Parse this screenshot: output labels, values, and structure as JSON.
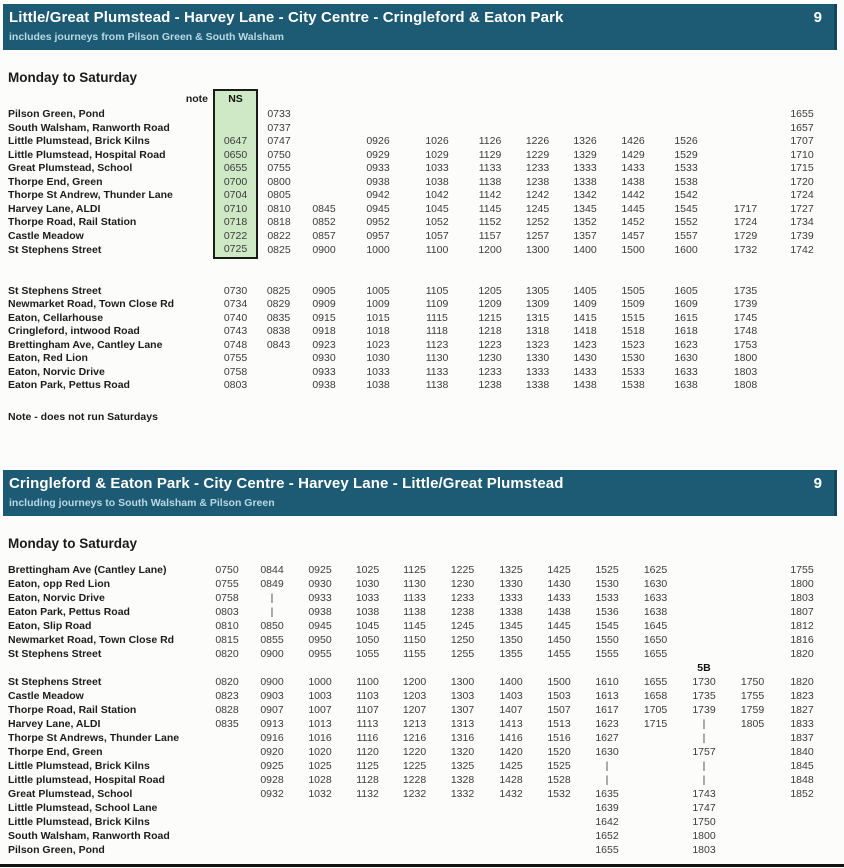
{
  "colors": {
    "banner_bg": "#1d5a74",
    "banner_subtitle": "#b8d8e4",
    "ns_fill": "#cfe9c6",
    "rule": "#121212"
  },
  "outbound": {
    "title": "Little/Great Plumstead - Harvey Lane - City Centre - Cringleford & Eaton Park",
    "route": "9",
    "subtitle": "includes journeys from Pilson Green & South Walsham",
    "day_label": "Monday to Saturday",
    "note_col_label": "note",
    "ns_label": "NS",
    "footnote": "Note - does not run Saturdays",
    "columns": 12,
    "sections": [
      [
        {
          "stop": "Pilson Green, Pond",
          "times": [
            "",
            "0733",
            "",
            "",
            "",
            "",
            "",
            "",
            "",
            "",
            "",
            "1655"
          ]
        },
        {
          "stop": "South Walsham, Ranworth Road",
          "times": [
            "",
            "0737",
            "",
            "",
            "",
            "",
            "",
            "",
            "",
            "",
            "",
            "1657"
          ]
        },
        {
          "stop": "Little Plumstead, Brick Kilns",
          "times": [
            "0647",
            "0747",
            "",
            "0926",
            "1026",
            "1126",
            "1226",
            "1326",
            "1426",
            "1526",
            "",
            "1707"
          ]
        },
        {
          "stop": "Little Plumstead, Hospital Road",
          "times": [
            "0650",
            "0750",
            "",
            "0929",
            "1029",
            "1129",
            "1229",
            "1329",
            "1429",
            "1529",
            "",
            "1710"
          ]
        },
        {
          "stop": "Great Plumstead, School",
          "times": [
            "0655",
            "0755",
            "",
            "0933",
            "1033",
            "1133",
            "1233",
            "1333",
            "1433",
            "1533",
            "",
            "1715"
          ]
        },
        {
          "stop": "Thorpe End, Green",
          "times": [
            "0700",
            "0800",
            "",
            "0938",
            "1038",
            "1138",
            "1238",
            "1338",
            "1438",
            "1538",
            "",
            "1720"
          ]
        },
        {
          "stop": "Thorpe St Andrew, Thunder Lane",
          "times": [
            "0704",
            "0805",
            "",
            "0942",
            "1042",
            "1142",
            "1242",
            "1342",
            "1442",
            "1542",
            "",
            "1724"
          ]
        },
        {
          "stop": "Harvey Lane, ALDI",
          "times": [
            "0710",
            "0810",
            "0845",
            "0945",
            "1045",
            "1145",
            "1245",
            "1345",
            "1445",
            "1545",
            "1717",
            "1727"
          ]
        },
        {
          "stop": "Thorpe Road, Rail Station",
          "times": [
            "0718",
            "0818",
            "0852",
            "0952",
            "1052",
            "1152",
            "1252",
            "1352",
            "1452",
            "1552",
            "1724",
            "1734"
          ]
        },
        {
          "stop": "Castle Meadow",
          "times": [
            "0722",
            "0822",
            "0857",
            "0957",
            "1057",
            "1157",
            "1257",
            "1357",
            "1457",
            "1557",
            "1729",
            "1739"
          ]
        },
        {
          "stop": "St Stephens Street",
          "times": [
            "0725",
            "0825",
            "0900",
            "1000",
            "1100",
            "1200",
            "1300",
            "1400",
            "1500",
            "1600",
            "1732",
            "1742"
          ]
        }
      ],
      [
        {
          "stop": "St Stephens Street",
          "times": [
            "0730",
            "0825",
            "0905",
            "1005",
            "1105",
            "1205",
            "1305",
            "1405",
            "1505",
            "1605",
            "1735",
            ""
          ]
        },
        {
          "stop": "Newmarket Road, Town Close Rd",
          "times": [
            "0734",
            "0829",
            "0909",
            "1009",
            "1109",
            "1209",
            "1309",
            "1409",
            "1509",
            "1609",
            "1739",
            ""
          ]
        },
        {
          "stop": "Eaton, Cellarhouse",
          "times": [
            "0740",
            "0835",
            "0915",
            "1015",
            "1115",
            "1215",
            "1315",
            "1415",
            "1515",
            "1615",
            "1745",
            ""
          ]
        },
        {
          "stop": "Cringleford, intwood Road",
          "times": [
            "0743",
            "0838",
            "0918",
            "1018",
            "1118",
            "1218",
            "1318",
            "1418",
            "1518",
            "1618",
            "1748",
            ""
          ]
        },
        {
          "stop": "Brettingham Ave, Cantley Lane",
          "times": [
            "0748",
            "0843",
            "0923",
            "1023",
            "1123",
            "1223",
            "1323",
            "1423",
            "1523",
            "1623",
            "1753",
            ""
          ]
        },
        {
          "stop": "Eaton, Red Lion",
          "times": [
            "0755",
            "",
            "0930",
            "1030",
            "1130",
            "1230",
            "1330",
            "1430",
            "1530",
            "1630",
            "1800",
            ""
          ]
        },
        {
          "stop": "Eaton, Norvic Drive",
          "times": [
            "0758",
            "",
            "0933",
            "1033",
            "1133",
            "1233",
            "1333",
            "1433",
            "1533",
            "1633",
            "1803",
            ""
          ]
        },
        {
          "stop": "Eaton Park, Pettus Road",
          "times": [
            "0803",
            "",
            "0938",
            "1038",
            "1138",
            "1238",
            "1338",
            "1438",
            "1538",
            "1638",
            "1808",
            ""
          ]
        }
      ]
    ]
  },
  "inbound": {
    "title": "Cringleford & Eaton Park - City Centre - Harvey Lane - Little/Great Plumstead",
    "route": "9",
    "subtitle": "including journeys to South Walsham & Pilson Green",
    "day_label": "Monday to Saturday",
    "columns": 13,
    "mid_label": {
      "text": "5B",
      "col": 10
    },
    "sections": [
      [
        {
          "stop": "Brettingham Ave (Cantley Lane)",
          "times": [
            "0750",
            "0844",
            "0925",
            "1025",
            "1125",
            "1225",
            "1325",
            "1425",
            "1525",
            "1625",
            "",
            "",
            "1755"
          ]
        },
        {
          "stop": "Eaton, opp Red Lion",
          "times": [
            "0755",
            "0849",
            "0930",
            "1030",
            "1130",
            "1230",
            "1330",
            "1430",
            "1530",
            "1630",
            "",
            "",
            "1800"
          ]
        },
        {
          "stop": "Eaton, Norvic Drive",
          "times": [
            "0758",
            "|",
            "0933",
            "1033",
            "1133",
            "1233",
            "1333",
            "1433",
            "1533",
            "1633",
            "",
            "",
            "1803"
          ]
        },
        {
          "stop": "Eaton Park, Pettus Road",
          "times": [
            "0803",
            "|",
            "0938",
            "1038",
            "1138",
            "1238",
            "1338",
            "1438",
            "1536",
            "1638",
            "",
            "",
            "1807"
          ]
        },
        {
          "stop": "Eaton, Slip Road",
          "times": [
            "0810",
            "0850",
            "0945",
            "1045",
            "1145",
            "1245",
            "1345",
            "1445",
            "1545",
            "1645",
            "",
            "",
            "1812"
          ]
        },
        {
          "stop": "Newmarket Road, Town Close Rd",
          "times": [
            "0815",
            "0855",
            "0950",
            "1050",
            "1150",
            "1250",
            "1350",
            "1450",
            "1550",
            "1650",
            "",
            "",
            "1816"
          ]
        },
        {
          "stop": "St Stephens Street",
          "times": [
            "0820",
            "0900",
            "0955",
            "1055",
            "1155",
            "1255",
            "1355",
            "1455",
            "1555",
            "1655",
            "",
            "",
            "1820"
          ]
        }
      ],
      [
        {
          "stop": "St Stephens Street",
          "times": [
            "0820",
            "0900",
            "1000",
            "1100",
            "1200",
            "1300",
            "1400",
            "1500",
            "1610",
            "1655",
            "1730",
            "1750",
            "1820"
          ]
        },
        {
          "stop": "Castle Meadow",
          "times": [
            "0823",
            "0903",
            "1003",
            "1103",
            "1203",
            "1303",
            "1403",
            "1503",
            "1613",
            "1658",
            "1735",
            "1755",
            "1823"
          ]
        },
        {
          "stop": "Thorpe Road, Rail Station",
          "times": [
            "0828",
            "0907",
            "1007",
            "1107",
            "1207",
            "1307",
            "1407",
            "1507",
            "1617",
            "1705",
            "1739",
            "1759",
            "1827"
          ]
        },
        {
          "stop": "Harvey Lane, ALDI",
          "times": [
            "0835",
            "0913",
            "1013",
            "1113",
            "1213",
            "1313",
            "1413",
            "1513",
            "1623",
            "1715",
            "|",
            "1805",
            "1833"
          ]
        },
        {
          "stop": "Thorpe St Andrews, Thunder Lane",
          "times": [
            "",
            "0916",
            "1016",
            "1116",
            "1216",
            "1316",
            "1416",
            "1516",
            "1627",
            "",
            "|",
            "",
            "1837"
          ]
        },
        {
          "stop": "Thorpe End, Green",
          "times": [
            "",
            "0920",
            "1020",
            "1120",
            "1220",
            "1320",
            "1420",
            "1520",
            "1630",
            "",
            "1757",
            "",
            "1840"
          ]
        },
        {
          "stop": "Little Plumstead, Brick Kilns",
          "times": [
            "",
            "0925",
            "1025",
            "1125",
            "1225",
            "1325",
            "1425",
            "1525",
            "|",
            "",
            "|",
            "",
            "1845"
          ]
        },
        {
          "stop": "Little plumstead, Hospital Road",
          "times": [
            "",
            "0928",
            "1028",
            "1128",
            "1228",
            "1328",
            "1428",
            "1528",
            "|",
            "",
            "|",
            "",
            "1848"
          ]
        },
        {
          "stop": "Great Plumstead, School",
          "times": [
            "",
            "0932",
            "1032",
            "1132",
            "1232",
            "1332",
            "1432",
            "1532",
            "1635",
            "",
            "1743",
            "",
            "1852"
          ]
        },
        {
          "stop": "Little Plumstead, School Lane",
          "times": [
            "",
            "",
            "",
            "",
            "",
            "",
            "",
            "",
            "1639",
            "",
            "1747",
            "",
            ""
          ]
        },
        {
          "stop": "Little Plumstead, Brick Kilns",
          "times": [
            "",
            "",
            "",
            "",
            "",
            "",
            "",
            "",
            "1642",
            "",
            "1750",
            "",
            ""
          ]
        },
        {
          "stop": "South Walsham, Ranworth Road",
          "times": [
            "",
            "",
            "",
            "",
            "",
            "",
            "",
            "",
            "1652",
            "",
            "1800",
            "",
            ""
          ]
        },
        {
          "stop": "Pilson Green, Pond",
          "times": [
            "",
            "",
            "",
            "",
            "",
            "",
            "",
            "",
            "1655",
            "",
            "1803",
            "",
            ""
          ]
        }
      ]
    ]
  }
}
